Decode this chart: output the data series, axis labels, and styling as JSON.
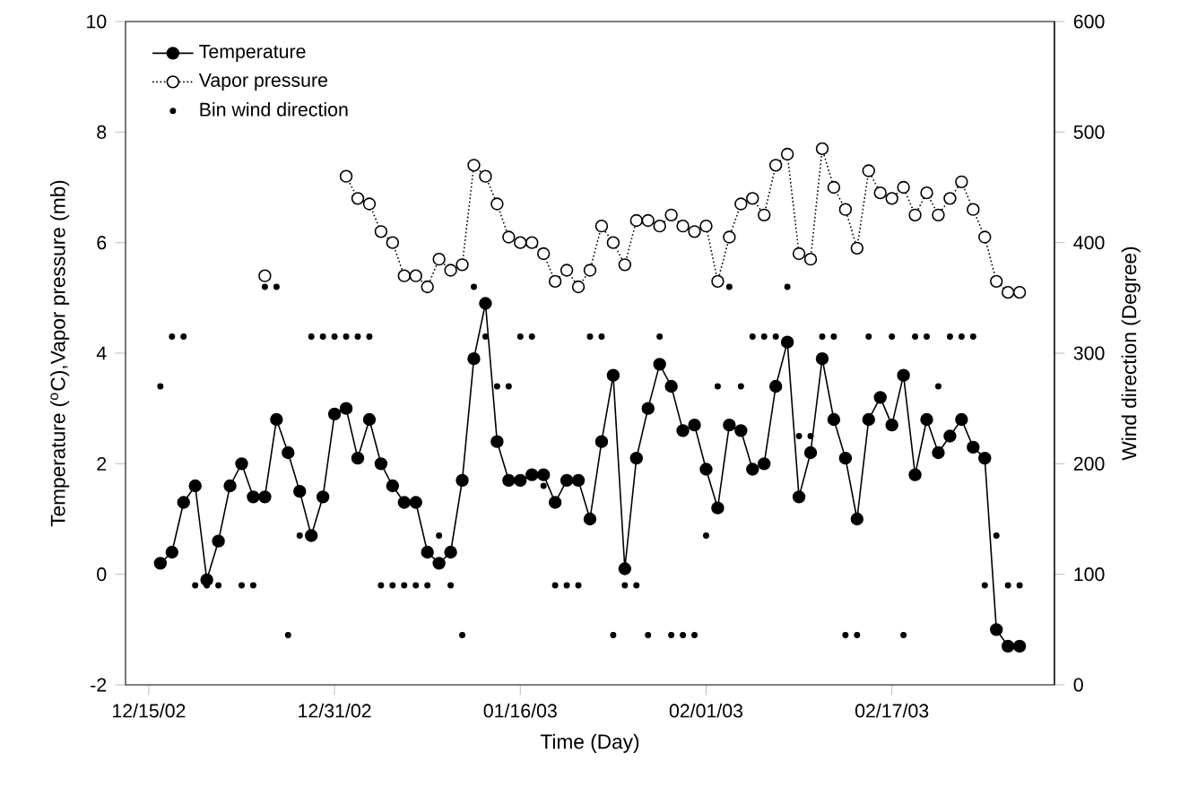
{
  "chart_data": {
    "type": "line",
    "xlabel": "Time (Day)",
    "ylabel": "Temperature ($^{o}$C),Vapor pressure (mb)",
    "y2label": "Wind direction (Degree)",
    "x": [
      "2002-12-16",
      "2002-12-17",
      "2002-12-18",
      "2002-12-19",
      "2002-12-20",
      "2002-12-21",
      "2002-12-22",
      "2002-12-23",
      "2002-12-24",
      "2002-12-25",
      "2002-12-26",
      "2002-12-27",
      "2002-12-28",
      "2002-12-29",
      "2002-12-30",
      "2002-12-31",
      "2003-01-01",
      "2003-01-02",
      "2003-01-03",
      "2003-01-04",
      "2003-01-05",
      "2003-01-06",
      "2003-01-07",
      "2003-01-08",
      "2003-01-09",
      "2003-01-10",
      "2003-01-11",
      "2003-01-12",
      "2003-01-13",
      "2003-01-14",
      "2003-01-15",
      "2003-01-16",
      "2003-01-17",
      "2003-01-18",
      "2003-01-19",
      "2003-01-20",
      "2003-01-21",
      "2003-01-22",
      "2003-01-23",
      "2003-01-24",
      "2003-01-25",
      "2003-01-26",
      "2003-01-27",
      "2003-01-28",
      "2003-01-29",
      "2003-01-30",
      "2003-01-31",
      "2003-02-01",
      "2003-02-02",
      "2003-02-03",
      "2003-02-04",
      "2003-02-05",
      "2003-02-06",
      "2003-02-07",
      "2003-02-08",
      "2003-02-09",
      "2003-02-10",
      "2003-02-11",
      "2003-02-12",
      "2003-02-13",
      "2003-02-14",
      "2003-02-15",
      "2003-02-16",
      "2003-02-17",
      "2003-02-18",
      "2003-02-19",
      "2003-02-20",
      "2003-02-21",
      "2003-02-22",
      "2003-02-23",
      "2003-02-24",
      "2003-02-25",
      "2003-02-26",
      "2003-02-27",
      "2003-02-28"
    ],
    "series": [
      {
        "name": "Temperature",
        "color": "#000000",
        "marker": "circle",
        "line_style": "solid",
        "values": [
          0.2,
          0.4,
          1.3,
          1.6,
          -0.1,
          0.6,
          1.6,
          2.0,
          1.4,
          1.4,
          2.8,
          2.2,
          1.5,
          0.7,
          1.4,
          2.9,
          3.0,
          2.1,
          2.8,
          2.0,
          1.6,
          1.3,
          1.3,
          0.4,
          0.2,
          0.4,
          1.7,
          3.9,
          4.9,
          2.4,
          1.7,
          1.7,
          1.8,
          1.8,
          1.3,
          1.7,
          1.7,
          1.0,
          2.4,
          3.6,
          0.1,
          2.1,
          3.0,
          3.8,
          3.4,
          2.6,
          2.7,
          1.9,
          1.2,
          2.7,
          2.6,
          1.9,
          2.0,
          3.4,
          4.2,
          1.4,
          2.2,
          3.9,
          2.8,
          2.1,
          1.0,
          2.8,
          3.2,
          2.7,
          3.6,
          1.8,
          2.8,
          2.2,
          2.5,
          2.8,
          2.3,
          2.1,
          -1.0,
          -1.3,
          -1.3
        ]
      },
      {
        "name": "Vapor pressure",
        "color": "#000000",
        "marker": "circle",
        "line_style": "dotted",
        "values": [
          null,
          null,
          null,
          null,
          null,
          null,
          null,
          null,
          null,
          5.4,
          null,
          null,
          null,
          null,
          null,
          null,
          7.2,
          6.8,
          6.7,
          6.2,
          6.0,
          5.4,
          5.4,
          5.2,
          5.7,
          5.5,
          5.6,
          7.4,
          7.2,
          6.7,
          6.1,
          6.0,
          6.0,
          5.8,
          5.3,
          5.5,
          5.2,
          5.5,
          6.3,
          6.0,
          5.6,
          6.4,
          6.4,
          6.3,
          6.5,
          6.3,
          6.2,
          6.3,
          5.3,
          6.1,
          6.7,
          6.8,
          6.5,
          7.4,
          7.6,
          5.8,
          5.7,
          7.7,
          7.0,
          6.6,
          5.9,
          7.3,
          6.9,
          6.8,
          7.0,
          6.5,
          6.9,
          6.5,
          6.8,
          7.1,
          6.6,
          6.1,
          5.3,
          5.1,
          5.1
        ]
      },
      {
        "name": "Bin wind direction",
        "type": "scatter",
        "axis": "y2",
        "color": "#000000",
        "marker": "circle",
        "values": [
          270,
          315,
          315,
          90,
          90,
          90,
          null,
          90,
          90,
          360,
          360,
          45,
          135,
          315,
          315,
          315,
          315,
          315,
          315,
          90,
          90,
          90,
          90,
          90,
          135,
          90,
          45,
          360,
          315,
          270,
          270,
          315,
          315,
          180,
          90,
          90,
          90,
          315,
          315,
          45,
          90,
          90,
          45,
          315,
          45,
          45,
          45,
          135,
          270,
          360,
          270,
          315,
          315,
          315,
          360,
          225,
          225,
          315,
          315,
          45,
          45,
          315,
          null,
          315,
          45,
          315,
          315,
          270,
          315,
          315,
          315,
          90,
          135,
          90,
          90
        ]
      }
    ],
    "xlim": [
      "2002-12-13",
      "2003-03-03"
    ],
    "xticks": [
      {
        "value": "2002-12-15",
        "label": "12/15/02"
      },
      {
        "value": "2002-12-31",
        "label": "12/31/02"
      },
      {
        "value": "2003-01-16",
        "label": "01/16/03"
      },
      {
        "value": "2003-02-01",
        "label": "02/01/03"
      },
      {
        "value": "2003-02-17",
        "label": "02/17/03"
      }
    ],
    "ylim": [
      -2,
      10
    ],
    "yticks": [
      -2,
      0,
      2,
      4,
      6,
      8,
      10
    ],
    "y2lim": [
      0,
      600
    ],
    "y2ticks": [
      0,
      100,
      200,
      300,
      400,
      500,
      600
    ],
    "legend": "top left"
  }
}
